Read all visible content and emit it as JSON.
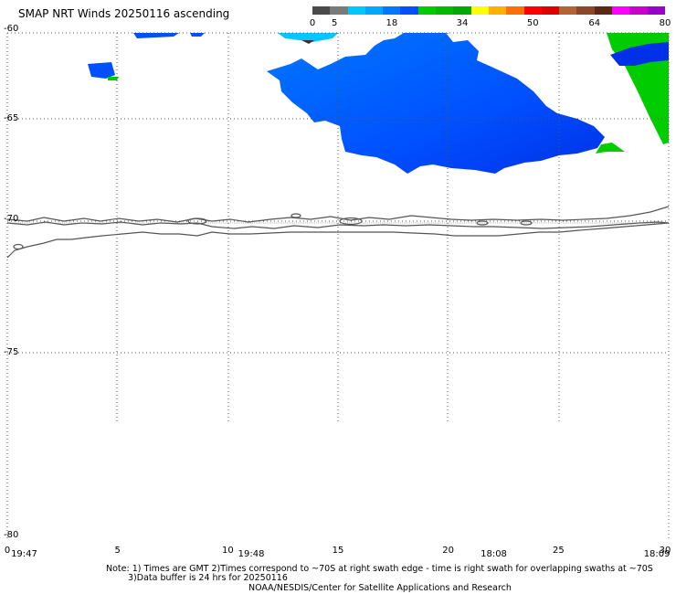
{
  "title": "SMAP NRT Winds 20250116 ascending",
  "colorbar": {
    "labels": [
      {
        "text": "0",
        "value": 0
      },
      {
        "text": "5",
        "value": 5
      },
      {
        "text": "18",
        "value": 18
      },
      {
        "text": "34",
        "value": 34
      },
      {
        "text": "50",
        "value": 50
      },
      {
        "text": "64",
        "value": 64
      },
      {
        "text": "80",
        "value": 80
      }
    ],
    "colors": [
      "#4a4a4a",
      "#7a7a7a",
      "#00c8ff",
      "#00a8ff",
      "#0078ff",
      "#0050ff",
      "#00cc00",
      "#00bb00",
      "#00aa00",
      "#ffff00",
      "#ffb000",
      "#ff7000",
      "#ff0000",
      "#e00000",
      "#b46432",
      "#8c4628",
      "#5a2814",
      "#ff00ff",
      "#cc00cc",
      "#9900cc"
    ]
  },
  "map": {
    "lat_labels": [
      {
        "text": "-60",
        "lat": -60
      },
      {
        "text": "-65",
        "lat": -65
      },
      {
        "text": "-70",
        "lat": -70
      },
      {
        "text": "-75",
        "lat": -75
      },
      {
        "text": "-80",
        "lat": -80
      }
    ],
    "lon_labels": [
      {
        "text": "0",
        "lon": 0
      },
      {
        "text": "5",
        "lon": 5
      },
      {
        "text": "10",
        "lon": 10
      },
      {
        "text": "15",
        "lon": 15
      },
      {
        "text": "20",
        "lon": 20
      },
      {
        "text": "25",
        "lon": 25
      },
      {
        "text": "30",
        "lon": 30
      }
    ],
    "times": [
      {
        "text": "19:47",
        "lon": 0.5
      },
      {
        "text": "19:48",
        "lon": 10.8
      },
      {
        "text": "18:08",
        "lon": 21.8
      },
      {
        "text": "18:09",
        "lon": 29.2
      }
    ],
    "colors": {
      "wind_light": "#00c8ff",
      "wind_mid": "#0050ff",
      "wind_dark": "#0020e0",
      "wind_green": "#00cc00",
      "coast": "#555555",
      "grid": "#555555"
    }
  },
  "notes": {
    "line1": "Note: 1) Times are GMT 2)Times correspond to ~70S at right swath edge - time is right swath for overlapping swaths at ~70S",
    "line2": "3)Data buffer is 24 hrs for 20250116",
    "line3": "NOAA/NESDIS/Center for Satellite Applications and Research"
  }
}
